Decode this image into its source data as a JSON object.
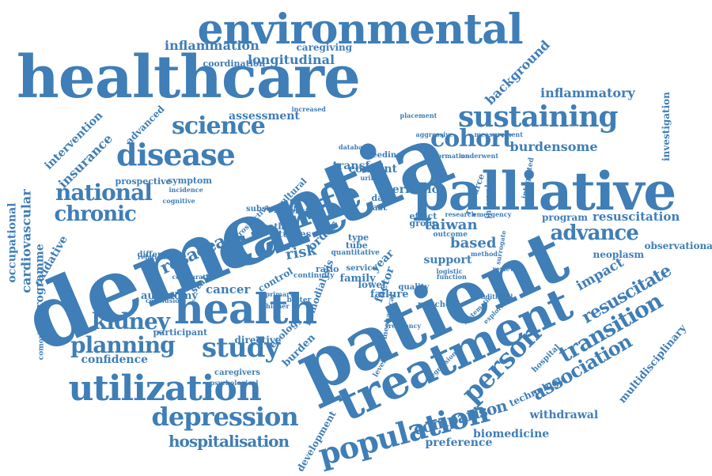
{
  "color": "#3f7eb6",
  "words": [
    "dementia",
    "patient",
    "healthcare",
    "care",
    "palliative",
    "environmental",
    "treatment",
    "health",
    "life",
    "disease",
    "sustaining",
    "utilization",
    "cohort",
    "science",
    "person",
    "study",
    "population",
    "transition",
    "depression",
    "national",
    "advance",
    "kidney",
    "planning",
    "chronic",
    "rosacea",
    "association",
    "resuscitate",
    "resuscitation",
    "hospitalisation",
    "comparison",
    "taiwan",
    "longitudinal",
    "inflammation",
    "inflammatory",
    "burdensome",
    "insurance",
    "intervention",
    "assessment",
    "cancer",
    "consent",
    "based",
    "impact",
    "background",
    "investigation",
    "cardiovascular",
    "occupational",
    "oxidative",
    "programme",
    "confidence",
    "biomedicine",
    "preference",
    "withdrawal",
    "multidisciplinary",
    "technology",
    "development",
    "coordination",
    "caregiving",
    "advanced",
    "geriatric",
    "autonomy",
    "observational",
    "neoplasm",
    "support",
    "transfer",
    "prospective",
    "symptom",
    "program",
    "risk",
    "order",
    "directive",
    "ecology",
    "burden",
    "participant",
    "status",
    "different",
    "caregivers",
    "hospital",
    "year",
    "comorbidities",
    "family",
    "control",
    "holistic",
    "cultural",
    "increased",
    "placement",
    "feeding",
    "database",
    "urinary",
    "measurement",
    "information",
    "underwent",
    "aggressive",
    "resource",
    "interval",
    "integrated",
    "research",
    "emergency",
    "effect",
    "group",
    "outcome",
    "surrogate",
    "method",
    "factor",
    "lower",
    "failure",
    "quality",
    "matched",
    "conditional",
    "systematic",
    "exploring",
    "logistic",
    "function",
    "regression",
    "frequency",
    "primary",
    "higher",
    "psychological",
    "conclusion",
    "relationship",
    "comparative",
    "cognitive",
    "incidence",
    "subsequent",
    "death",
    "studies",
    "ratio",
    "type",
    "tube",
    "day",
    "last",
    "service",
    "review",
    "level",
    "mechanical",
    "hemodialysis",
    "continuity",
    "retrospective",
    "better",
    "quantitative",
    "public",
    "admission",
    "costs",
    "major",
    "record"
  ]
}
